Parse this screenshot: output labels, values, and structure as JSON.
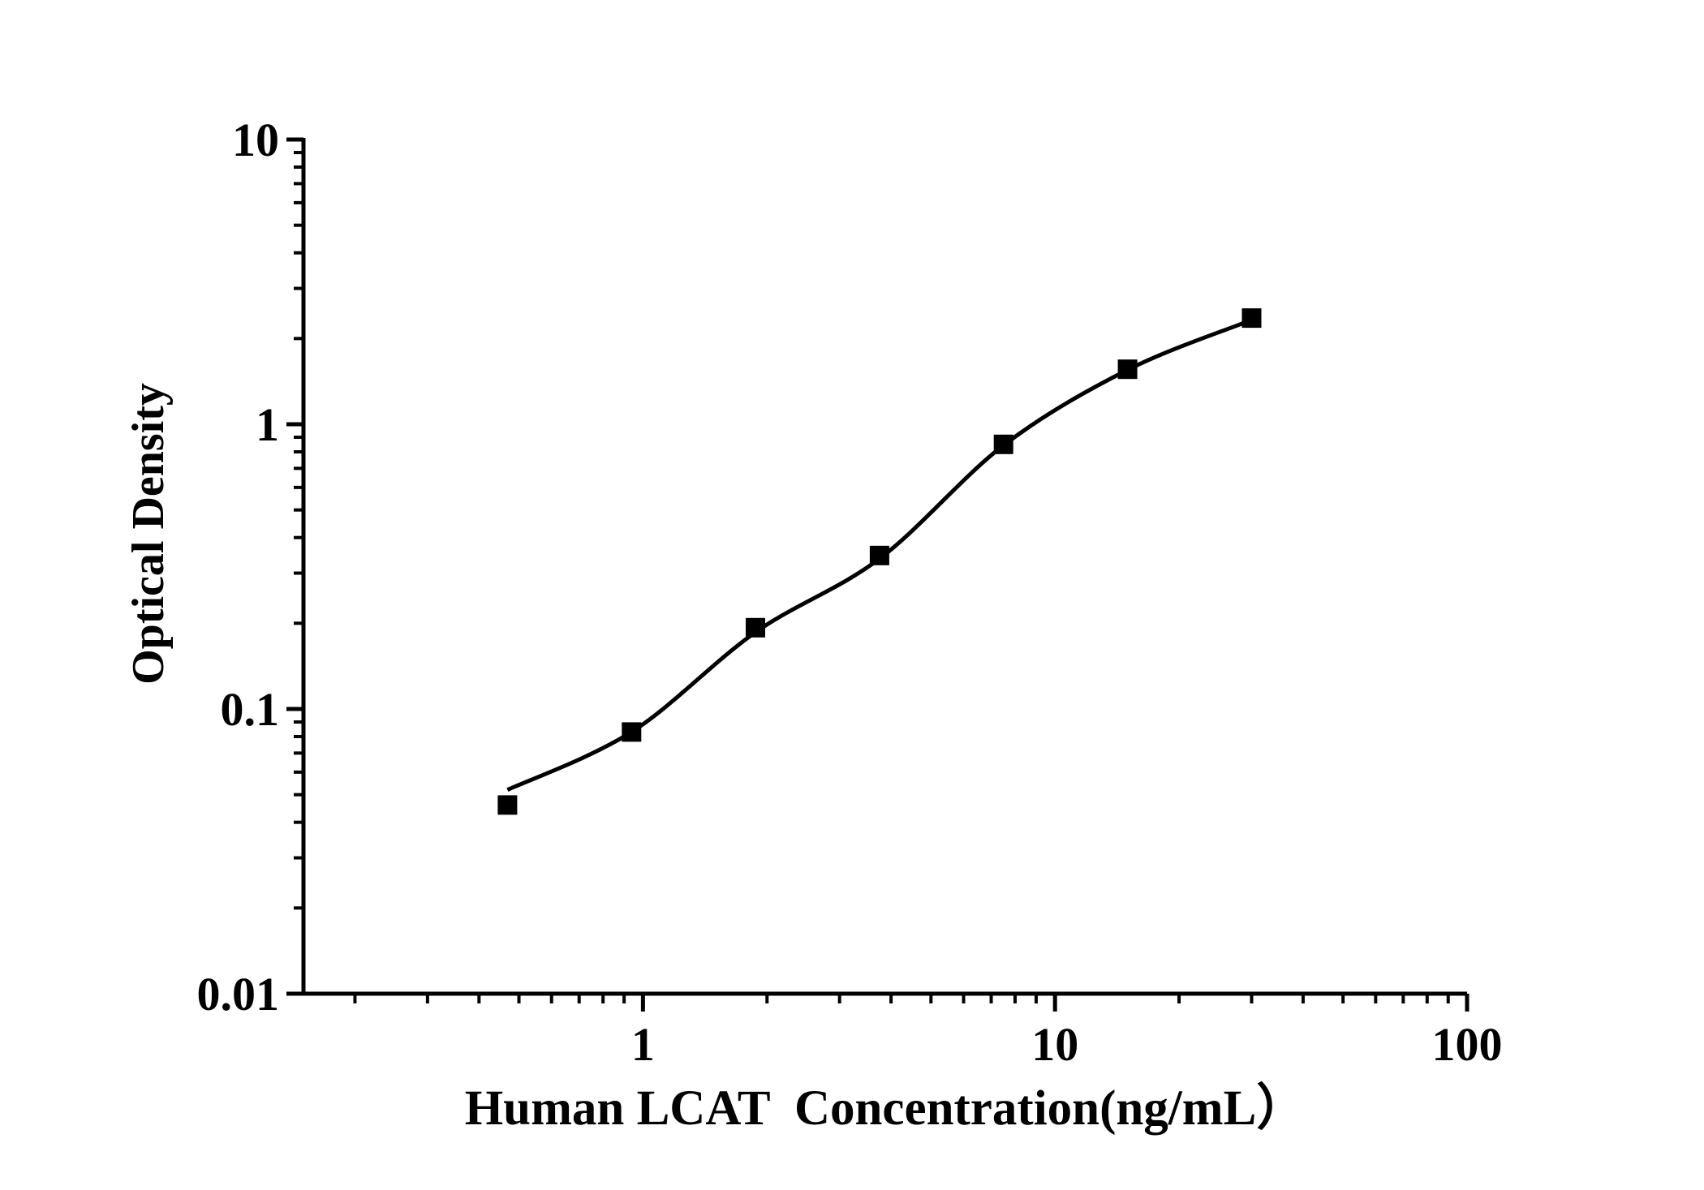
{
  "page": {
    "background_color": "#ffffff",
    "foreground_color": "#000000"
  },
  "chart_data": {
    "type": "scatter",
    "title": "",
    "xlabel": "Human LCAT  Concentration(ng/mL）",
    "ylabel": "Optical Density",
    "x_scale": "log",
    "y_scale": "log",
    "xlim": [
      0.15,
      100
    ],
    "ylim": [
      0.01,
      10
    ],
    "grid": false,
    "legend": null,
    "axis_color": "#000000",
    "x_ticks": [
      {
        "value": 1,
        "label": "1"
      },
      {
        "value": 10,
        "label": "10"
      },
      {
        "value": 100,
        "label": "100"
      }
    ],
    "y_ticks": [
      {
        "value": 0.01,
        "label": "0.01"
      },
      {
        "value": 0.1,
        "label": "0.1"
      },
      {
        "value": 1,
        "label": "1"
      },
      {
        "value": 10,
        "label": "10"
      }
    ],
    "minor_ticks": "log-decades (2-9) on both axes",
    "series": [
      {
        "marker": "filled-square",
        "color": "#000000",
        "points": [
          {
            "x": 0.469,
            "y": 0.046
          },
          {
            "x": 0.938,
            "y": 0.083
          },
          {
            "x": 1.875,
            "y": 0.193
          },
          {
            "x": 3.75,
            "y": 0.346
          },
          {
            "x": 7.5,
            "y": 0.85
          },
          {
            "x": 15,
            "y": 1.56
          },
          {
            "x": 30,
            "y": 2.36
          }
        ]
      }
    ],
    "fit_curve": [
      {
        "x": 0.469,
        "y": 0.052
      },
      {
        "x": 0.938,
        "y": 0.083
      },
      {
        "x": 1.875,
        "y": 0.186
      },
      {
        "x": 3.75,
        "y": 0.337
      },
      {
        "x": 7.5,
        "y": 0.843
      },
      {
        "x": 15,
        "y": 1.552
      },
      {
        "x": 29.2,
        "y": 2.29
      }
    ]
  }
}
